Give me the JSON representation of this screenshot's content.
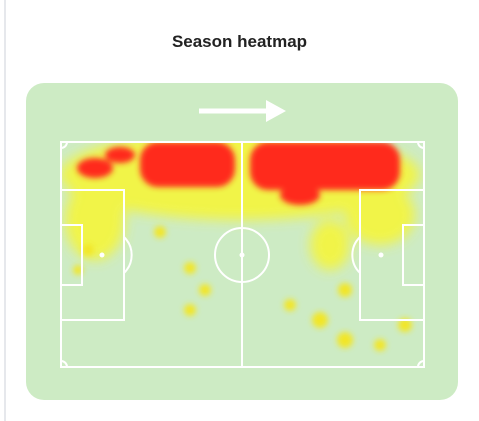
{
  "header": {
    "title": "Season heatmap"
  }
}
